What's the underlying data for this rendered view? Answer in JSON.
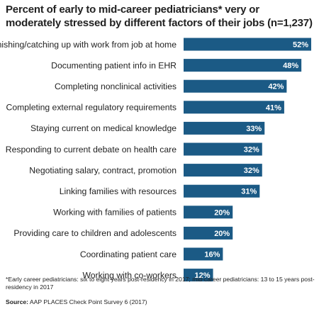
{
  "chart_data": {
    "type": "bar",
    "orientation": "horizontal",
    "title": "Percent of early to mid-career pediatricians* very or moderately stressed by different factors of their jobs (n=1,237)",
    "categories": [
      "Finishing/catching up with work from job at home",
      "Documenting patient info in EHR",
      "Completing nonclinical activities",
      "Completing external regulatory requirements",
      "Staying current on medical knowledge",
      "Responding to current debate on health care",
      "Negotiating salary, contract, promotion",
      "Linking families with resources",
      "Working with families of patients",
      "Providing care to children and adolescents",
      "Coordinating patient care",
      "Working with co-workers"
    ],
    "values": [
      52,
      48,
      42,
      41,
      33,
      32,
      32,
      31,
      20,
      20,
      16,
      12
    ],
    "value_labels": [
      "52%",
      "48%",
      "42%",
      "41%",
      "33%",
      "32%",
      "32%",
      "31%",
      "20%",
      "20%",
      "16%",
      "12%"
    ],
    "xlim": [
      0,
      52
    ],
    "grid": false,
    "legend": "none",
    "bar_color": "#1b5a85",
    "label_color": "#ffffff"
  },
  "footnote": "*Early career pediatricians: six to eight years post-residency in 2017; mid-career pediatricians: 13 to 15 years post-residency in 2017",
  "source": {
    "label": "Source:",
    "text": " AAP PLACES Check Point Survey 6 (2017)"
  }
}
